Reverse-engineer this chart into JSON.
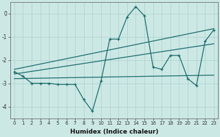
{
  "xlabel": "Humidex (Indice chaleur)",
  "bg_color": "#cce8e5",
  "grid_color": "#aad0cc",
  "line_color": "#1a6b6b",
  "xlim": [
    -0.5,
    23.5
  ],
  "ylim": [
    -4.5,
    0.5
  ],
  "yticks": [
    0,
    -1,
    -2,
    -3,
    -4
  ],
  "xticks": [
    0,
    1,
    2,
    3,
    4,
    5,
    6,
    7,
    8,
    9,
    10,
    11,
    12,
    13,
    14,
    15,
    16,
    17,
    18,
    19,
    20,
    21,
    22,
    23
  ],
  "line1_x": [
    0,
    1,
    2,
    3,
    4,
    5,
    6,
    7,
    8,
    9,
    10,
    11,
    12,
    13,
    14,
    15,
    16,
    17,
    18,
    19,
    20,
    21,
    22,
    23
  ],
  "line1_y": [
    -2.5,
    -2.7,
    -3.0,
    -3.0,
    -3.0,
    -3.05,
    -3.05,
    -3.05,
    -3.7,
    -4.2,
    -2.9,
    -1.1,
    -1.1,
    -0.15,
    0.3,
    -0.1,
    -2.3,
    -2.4,
    -1.8,
    -1.8,
    -2.8,
    -3.1,
    -1.2,
    -0.7
  ],
  "line2_x": [
    0,
    23
  ],
  "line2_y": [
    -2.4,
    -0.65
  ],
  "line3_x": [
    0,
    23
  ],
  "line3_y": [
    -2.6,
    -1.3
  ],
  "line4_x": [
    0,
    23
  ],
  "line4_y": [
    -2.8,
    -2.65
  ]
}
